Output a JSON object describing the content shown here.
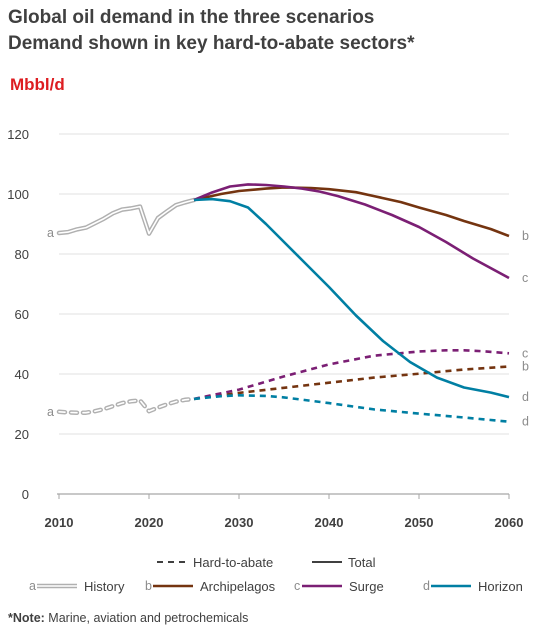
{
  "header": {
    "title_line1": "Global oil demand in the three scenarios",
    "title_line2": "Demand shown in key hard-to-abate sectors*",
    "unit": "Mbbl/d"
  },
  "note": {
    "bold": "*Note:",
    "text": " Marine, aviation and petrochemicals"
  },
  "chart_data": {
    "type": "line",
    "ylabel": "Mbbl/d",
    "xlim": [
      2010,
      2060
    ],
    "ylim": [
      0,
      120
    ],
    "x_ticks": [
      2010,
      2020,
      2030,
      2040,
      2050,
      2060
    ],
    "y_ticks": [
      0,
      20,
      40,
      60,
      80,
      100,
      120
    ],
    "grid": "horizontal",
    "colors": {
      "history": "#b0b0b0",
      "archipelagos": "#743410",
      "surge": "#7b1f74",
      "horizon": "#007fa3"
    },
    "legend": {
      "line_styles": [
        {
          "label": "Hard-to-abate",
          "style": "dashed"
        },
        {
          "label": "Total",
          "style": "solid"
        }
      ],
      "scenarios": [
        {
          "letter": "a",
          "label": "History",
          "key": "history"
        },
        {
          "letter": "b",
          "label": "Archipelagos",
          "key": "archipelagos"
        },
        {
          "letter": "c",
          "label": "Surge",
          "key": "surge"
        },
        {
          "letter": "d",
          "label": "Horizon",
          "key": "horizon"
        }
      ]
    },
    "series": [
      {
        "key": "history",
        "kind": "total",
        "letter": "a",
        "letter_side": "start",
        "x": [
          2010,
          2011,
          2012,
          2013,
          2014,
          2015,
          2016,
          2017,
          2018,
          2019,
          2020,
          2021,
          2022,
          2023,
          2024,
          2025
        ],
        "y": [
          87,
          87.3,
          88.2,
          88.8,
          90.3,
          91.8,
          93.6,
          94.8,
          95.2,
          95.8,
          86.8,
          92,
          94.2,
          96.3,
          97.2,
          98
        ]
      },
      {
        "key": "history",
        "kind": "hard",
        "letter": "a",
        "letter_side": "start",
        "x": [
          2010,
          2011,
          2012,
          2013,
          2014,
          2015,
          2016,
          2017,
          2018,
          2019,
          2020,
          2021,
          2022,
          2023,
          2024,
          2025
        ],
        "y": [
          27.4,
          27.2,
          27.1,
          27.1,
          27.6,
          28.3,
          29.3,
          30.3,
          30.9,
          31.2,
          27.6,
          28.8,
          29.9,
          30.8,
          31.4,
          31.7
        ]
      },
      {
        "key": "archipelagos",
        "kind": "total",
        "letter": "b",
        "letter_side": "end",
        "x": [
          2025,
          2028,
          2030,
          2033,
          2035,
          2038,
          2040,
          2043,
          2045,
          2048,
          2050,
          2053,
          2055,
          2058,
          2060
        ],
        "y": [
          98,
          100,
          101,
          101.8,
          102.2,
          102,
          101.6,
          100.6,
          99.3,
          97.3,
          95.5,
          93,
          91,
          88.3,
          86
        ]
      },
      {
        "key": "archipelagos",
        "kind": "hard",
        "letter": "b",
        "letter_side": "end",
        "x": [
          2025,
          2030,
          2035,
          2040,
          2045,
          2050,
          2055,
          2060
        ],
        "y": [
          31.7,
          33.7,
          35.4,
          37.1,
          38.8,
          40.1,
          41.5,
          42.5
        ]
      },
      {
        "key": "surge",
        "kind": "total",
        "letter": "c",
        "letter_side": "end",
        "x": [
          2025,
          2027,
          2029,
          2031,
          2033,
          2035,
          2037,
          2039,
          2041,
          2044,
          2047,
          2050,
          2053,
          2056,
          2060
        ],
        "y": [
          98,
          100.5,
          102.5,
          103.2,
          103,
          102.5,
          101.8,
          100.8,
          99.3,
          96.5,
          93,
          89,
          84,
          78.5,
          72
        ]
      },
      {
        "key": "surge",
        "kind": "hard",
        "letter": "c",
        "letter_side": "end",
        "x": [
          2025,
          2030,
          2035,
          2040,
          2045,
          2050,
          2053,
          2055,
          2057,
          2060
        ],
        "y": [
          31.7,
          34.8,
          39.2,
          43.2,
          46.1,
          47.5,
          47.9,
          47.9,
          47.6,
          46.9
        ]
      },
      {
        "key": "horizon",
        "kind": "total",
        "letter": "d",
        "letter_side": "end",
        "x": [
          2025,
          2027,
          2029,
          2031,
          2033,
          2035,
          2037,
          2040,
          2043,
          2046,
          2049,
          2052,
          2055,
          2058,
          2060
        ],
        "y": [
          98,
          98.3,
          97.6,
          95.5,
          90,
          84,
          78,
          69,
          59.5,
          51,
          44,
          38.8,
          35.5,
          33.8,
          32.3
        ]
      },
      {
        "key": "horizon",
        "kind": "hard",
        "letter": "d",
        "letter_side": "end",
        "x": [
          2025,
          2028,
          2030,
          2033,
          2035,
          2040,
          2045,
          2050,
          2055,
          2060
        ],
        "y": [
          31.7,
          32.6,
          32.9,
          32.7,
          32.2,
          30.3,
          28.2,
          26.8,
          25.5,
          24.1
        ]
      }
    ]
  }
}
